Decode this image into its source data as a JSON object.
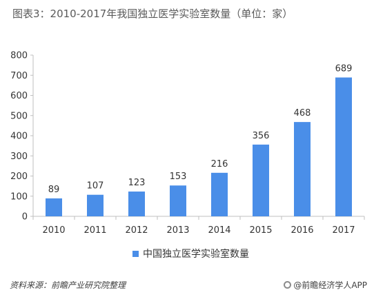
{
  "chart_data": {
    "type": "bar",
    "title": "图表3：2010-2017年我国独立医学实验室数量（单位：家）",
    "categories": [
      "2010",
      "2011",
      "2012",
      "2013",
      "2014",
      "2015",
      "2016",
      "2017"
    ],
    "series": [
      {
        "name": "中国独立医学实验室数量",
        "values": [
          89,
          107,
          123,
          153,
          216,
          356,
          468,
          689
        ]
      }
    ],
    "ylim": [
      0,
      800
    ],
    "yticks": [
      0,
      100,
      200,
      300,
      400,
      500,
      600,
      700,
      800
    ],
    "grid": false,
    "legend": "bottom",
    "bar_color": "#4a8ee8"
  },
  "footer": {
    "source": "资料来源：前瞻产业研究院整理",
    "brand": "@前瞻经济学人APP"
  },
  "icons": {
    "brand_icon": "gear-icon"
  }
}
